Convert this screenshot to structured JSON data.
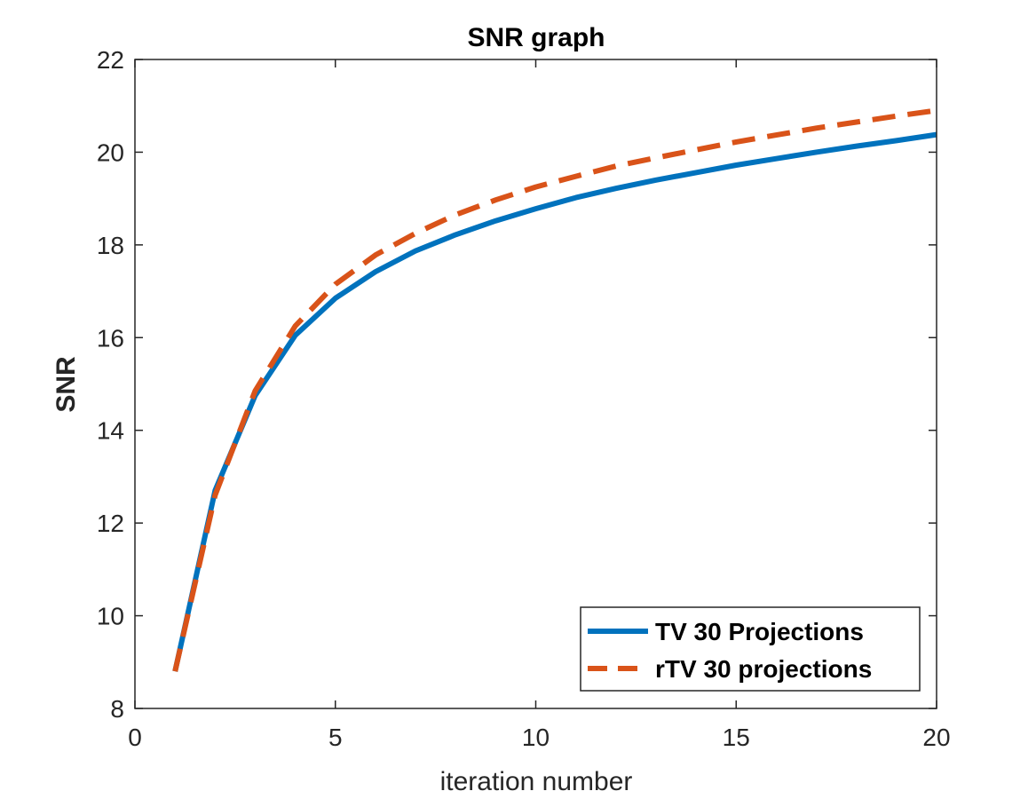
{
  "chart_data": {
    "type": "line",
    "title": "SNR graph",
    "xlabel": "iteration number",
    "ylabel": "SNR",
    "xlim": [
      0,
      20
    ],
    "ylim": [
      8,
      22
    ],
    "xticks": [
      "0",
      "5",
      "10",
      "15",
      "20"
    ],
    "yticks": [
      "8",
      "10",
      "12",
      "14",
      "16",
      "18",
      "20",
      "22"
    ],
    "grid": false,
    "legend_position": "bottom-right",
    "x": [
      1,
      2,
      3,
      4,
      5,
      6,
      7,
      8,
      9,
      10,
      11,
      12,
      13,
      14,
      15,
      16,
      17,
      18,
      19,
      20
    ],
    "series": [
      {
        "name": "TV 30 Projections",
        "color": "#0072BD",
        "style": "solid",
        "values": [
          8.8,
          12.7,
          14.75,
          16.05,
          16.85,
          17.42,
          17.87,
          18.22,
          18.52,
          18.78,
          19.02,
          19.22,
          19.4,
          19.56,
          19.72,
          19.86,
          20.0,
          20.13,
          20.25,
          20.38
        ]
      },
      {
        "name": "rTV 30 projections",
        "color": "#D95319",
        "style": "dashed",
        "values": [
          8.8,
          12.6,
          14.85,
          16.25,
          17.15,
          17.78,
          18.25,
          18.65,
          18.97,
          19.25,
          19.48,
          19.7,
          19.88,
          20.05,
          20.22,
          20.37,
          20.52,
          20.65,
          20.78,
          20.9
        ]
      }
    ]
  }
}
